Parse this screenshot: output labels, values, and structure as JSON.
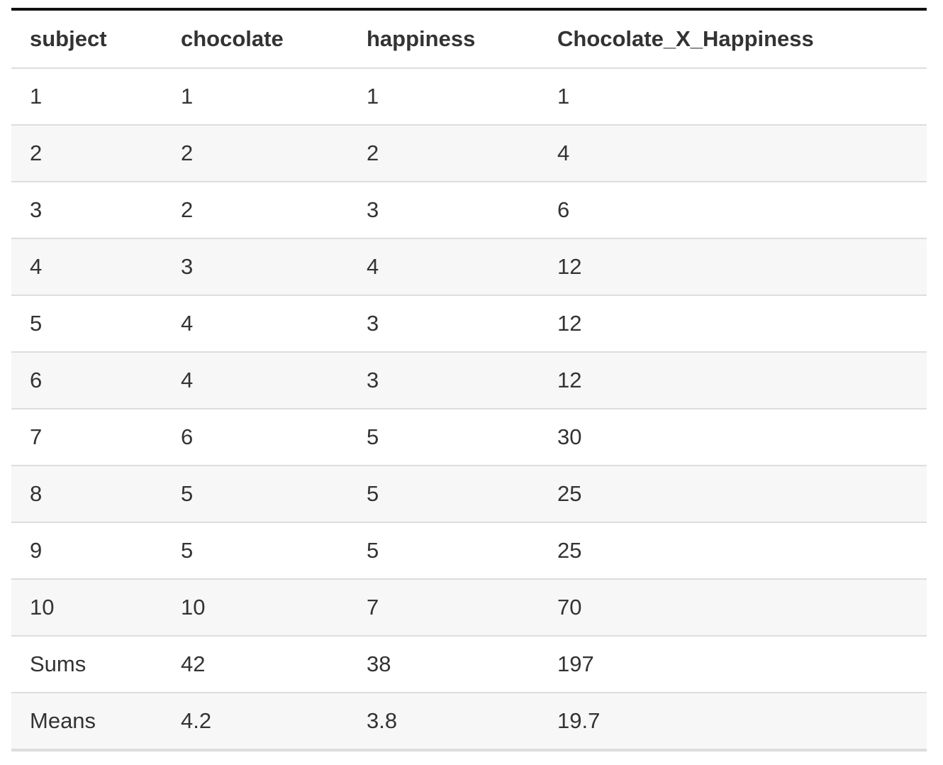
{
  "table": {
    "headers": [
      "subject",
      "chocolate",
      "happiness",
      "Chocolate_X_Happiness"
    ],
    "rows": [
      [
        "1",
        "1",
        "1",
        "1"
      ],
      [
        "2",
        "2",
        "2",
        "4"
      ],
      [
        "3",
        "2",
        "3",
        "6"
      ],
      [
        "4",
        "3",
        "4",
        "12"
      ],
      [
        "5",
        "4",
        "3",
        "12"
      ],
      [
        "6",
        "4",
        "3",
        "12"
      ],
      [
        "7",
        "6",
        "5",
        "30"
      ],
      [
        "8",
        "5",
        "5",
        "25"
      ],
      [
        "9",
        "5",
        "5",
        "25"
      ],
      [
        "10",
        "10",
        "7",
        "70"
      ],
      [
        "Sums",
        "42",
        "38",
        "197"
      ],
      [
        "Means",
        "4.2",
        "3.8",
        "19.7"
      ]
    ]
  }
}
